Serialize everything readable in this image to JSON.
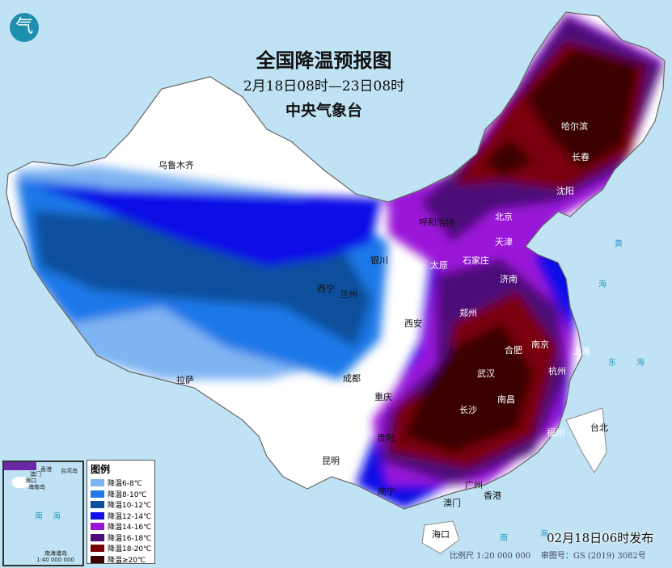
{
  "header": {
    "title": "全国降温预报图",
    "period": "2月18日08时—23日08时",
    "issuer": "中央气象台"
  },
  "legend": {
    "title": "图例",
    "items": [
      {
        "label": "降温6-8℃",
        "color": "#7fb4f2"
      },
      {
        "label": "降温8-10℃",
        "color": "#1f78e8"
      },
      {
        "label": "降温10-12℃",
        "color": "#0f4f9c"
      },
      {
        "label": "降温12-14℃",
        "color": "#0a10e6"
      },
      {
        "label": "降温14-16℃",
        "color": "#9a14d8"
      },
      {
        "label": "降温16-18℃",
        "color": "#4b0c78"
      },
      {
        "label": "降温18-20℃",
        "color": "#7a0008"
      },
      {
        "label": "降温≥20℃",
        "color": "#3a0404"
      }
    ]
  },
  "cities": [
    "乌鲁木齐",
    "呼和浩特",
    "北京",
    "天津",
    "石家庄",
    "太原",
    "济南",
    "银川",
    "西宁",
    "兰州",
    "西安",
    "郑州",
    "南京",
    "合肥",
    "武汉",
    "杭州",
    "上海",
    "南昌",
    "长沙",
    "福州",
    "台北",
    "成都",
    "重庆",
    "贵阳",
    "昆明",
    "南宁",
    "广州",
    "香港",
    "澳门",
    "海口",
    "拉萨",
    "哈尔滨",
    "长春",
    "沈阳"
  ],
  "seas": [
    "黄",
    "海",
    "东",
    "海",
    "南",
    "海"
  ],
  "inset": {
    "labels": [
      "香港",
      "澳门",
      "台湾岛",
      "海口",
      "海南岛",
      "南",
      "海",
      "南海诸岛"
    ],
    "scale": "1:40 000 000"
  },
  "footer": {
    "release": "02月18日06时发布",
    "scale": "比例尺 1:20 000 000",
    "map_number": "审图号：GS (2019) 3082号"
  },
  "logo": "气"
}
